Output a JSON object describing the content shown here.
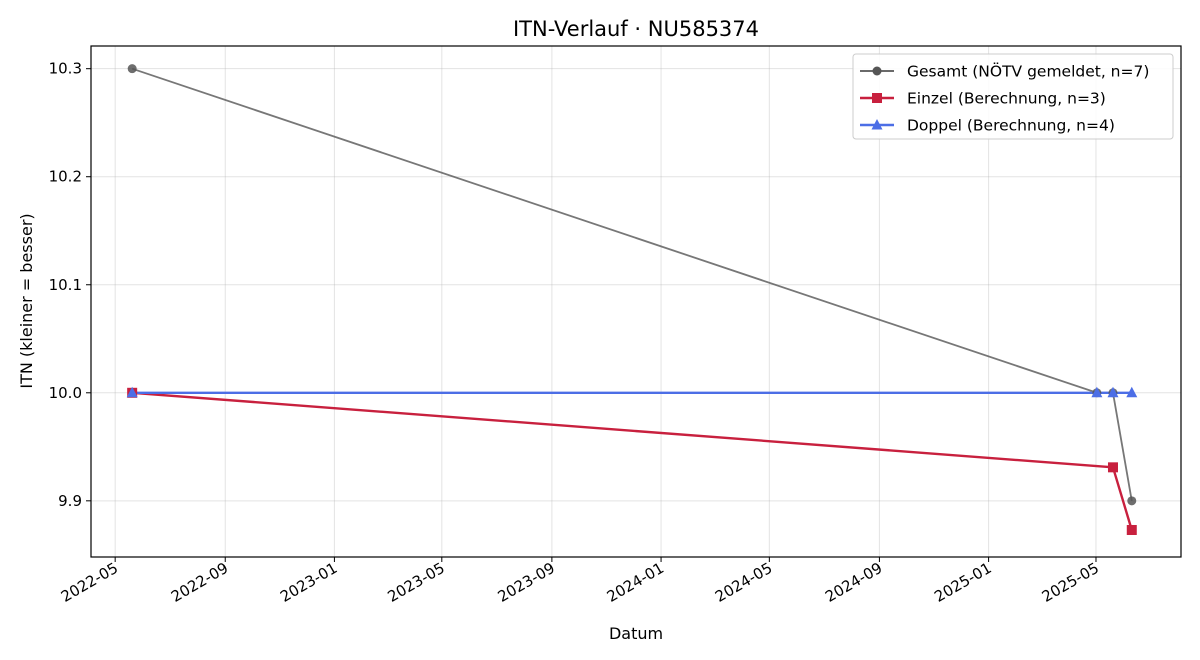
{
  "chart_data": {
    "type": "line",
    "title": "ITN-Verlauf · NU585374",
    "xlabel": "Datum",
    "ylabel": "ITN  (kleiner = besser)",
    "x_type": "date",
    "xlim": [
      "2022-04-04",
      "2025-08-04"
    ],
    "ylim": [
      9.848,
      10.321
    ],
    "x_ticks": [
      "2022-05",
      "2022-09",
      "2023-01",
      "2023-05",
      "2023-09",
      "2024-01",
      "2024-05",
      "2024-09",
      "2025-01",
      "2025-05"
    ],
    "y_ticks": [
      9.9,
      10.0,
      10.1,
      10.2,
      10.3
    ],
    "grid": true,
    "legend_position": "top-right",
    "series": [
      {
        "name": "Gesamt (NÖTV gemeldet, n=7)",
        "color": "#555555",
        "marker": "circle",
        "x": [
          "2022-05-20",
          "2025-05-02",
          "2025-05-20",
          "2025-06-10"
        ],
        "y": [
          10.3,
          10.0,
          10.0,
          9.9
        ]
      },
      {
        "name": "Einzel (Berechnung, n=3)",
        "color": "#c8203e",
        "marker": "square",
        "x": [
          "2022-05-20",
          "2025-05-20",
          "2025-06-10"
        ],
        "y": [
          10.0,
          9.931,
          9.873
        ]
      },
      {
        "name": "Doppel (Berechnung, n=4)",
        "color": "#4c6ee6",
        "marker": "triangle",
        "x": [
          "2022-05-20",
          "2025-05-02",
          "2025-05-20",
          "2025-06-10"
        ],
        "y": [
          10.0,
          10.0,
          10.0,
          10.0
        ]
      }
    ]
  }
}
